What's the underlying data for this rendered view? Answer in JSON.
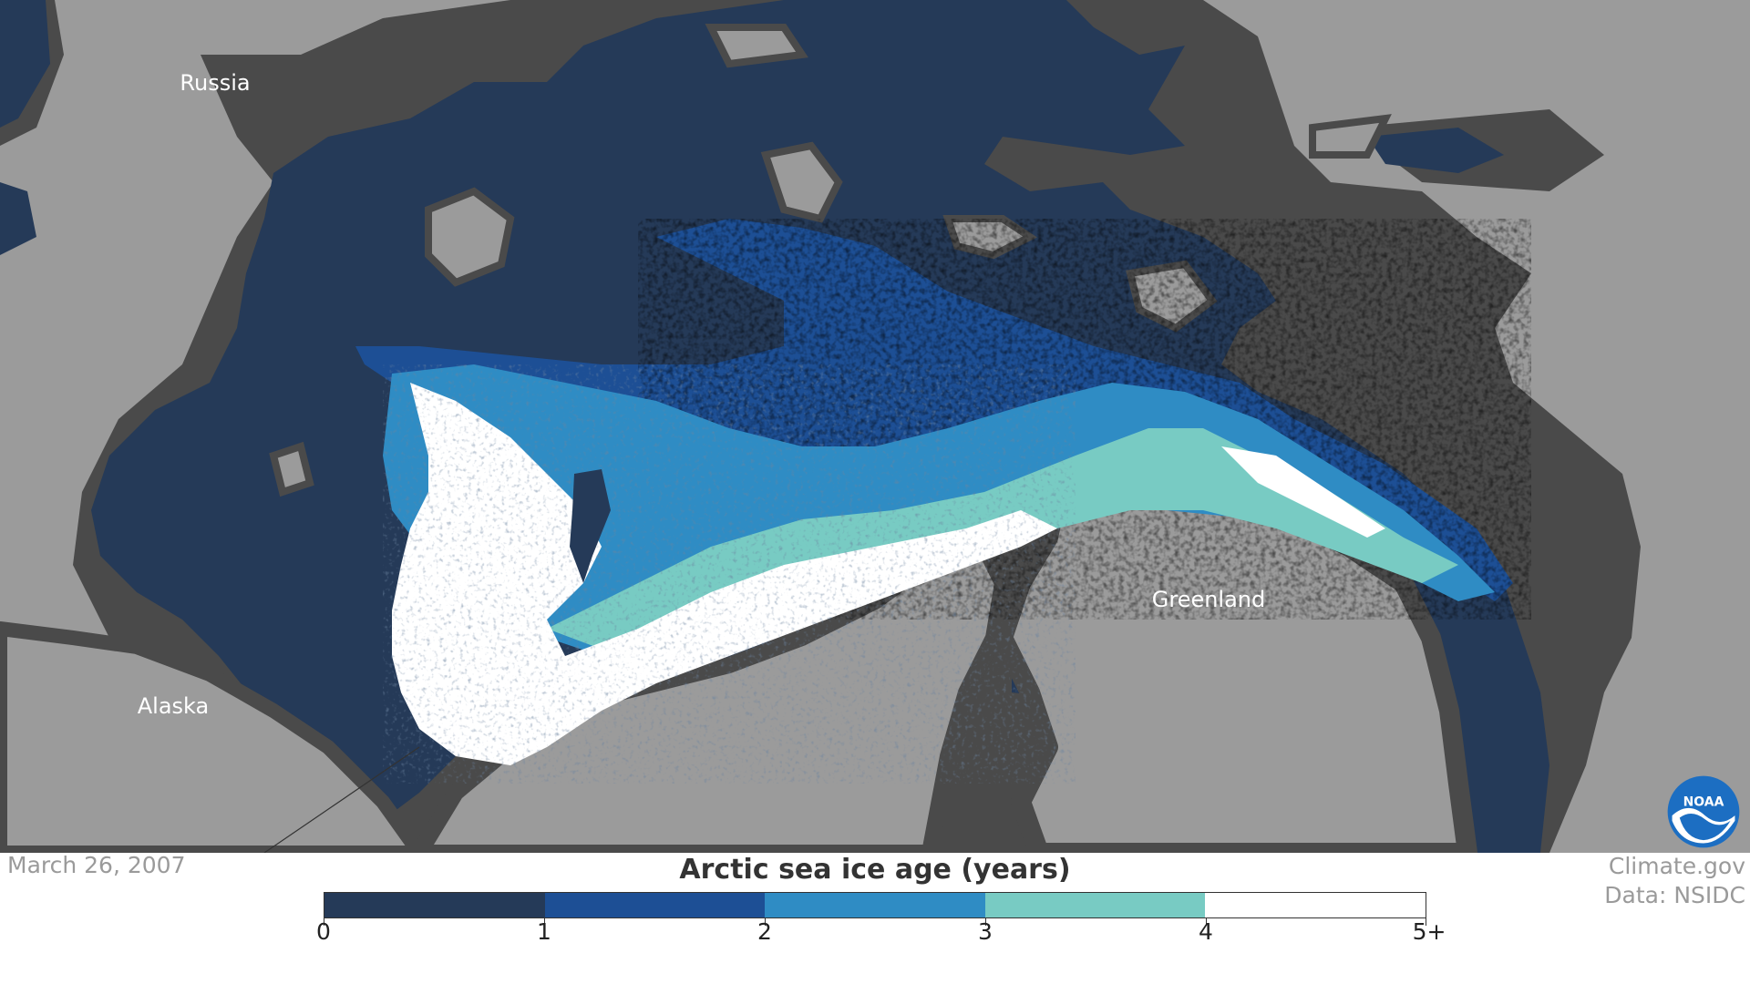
{
  "map": {
    "labels": {
      "russia": "Russia",
      "alaska": "Alaska",
      "greenland": "Greenland"
    },
    "colors": {
      "land": "#9b9b9b",
      "shelf": "#4a4a4a",
      "ocean": "#223850",
      "ice_0_1": "#253a58",
      "ice_1_2": "#1d4f95",
      "ice_2_3": "#2f8cc4",
      "ice_3_4": "#78cbc3",
      "ice_4_5": "#ffffff"
    }
  },
  "date": "March 26, 2007",
  "credits": {
    "line1": "Climate.gov",
    "line2": "Data: NSIDC"
  },
  "legend": {
    "title": "Arctic sea ice age (years)",
    "ticks": [
      "0",
      "1",
      "2",
      "3",
      "4",
      "5+"
    ],
    "colors": [
      "#253a58",
      "#1d4f95",
      "#2f8cc4",
      "#78cbc3",
      "#ffffff"
    ]
  },
  "logo": {
    "text": "NOAA"
  }
}
